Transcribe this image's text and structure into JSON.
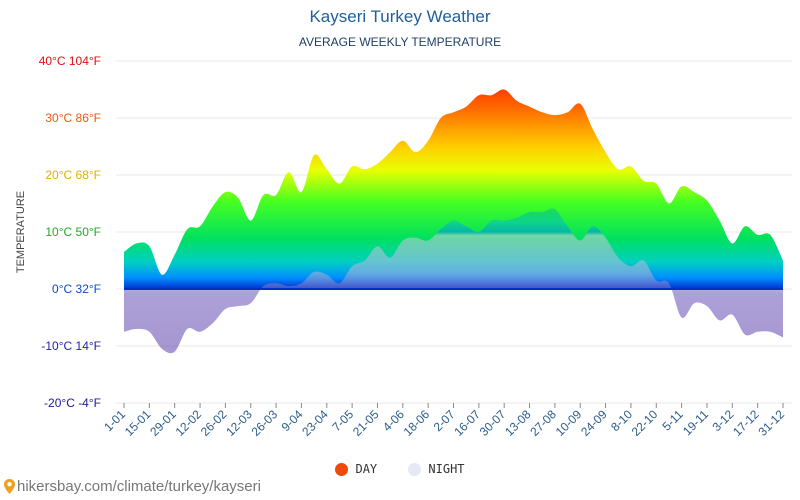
{
  "chart_data": {
    "type": "area",
    "title": "Kayseri Turkey Weather",
    "subtitle": "AVERAGE WEEKLY TEMPERATURE",
    "ylabel": "TEMPERATURE",
    "ylim": [
      -20,
      40
    ],
    "y_ticks": [
      {
        "value": 40,
        "label": "40°C 104°F",
        "color": "#e01010"
      },
      {
        "value": 30,
        "label": "30°C 86°F",
        "color": "#e85a0a"
      },
      {
        "value": 20,
        "label": "20°C 68°F",
        "color": "#e0b000"
      },
      {
        "value": 10,
        "label": "10°C 50°F",
        "color": "#22aa22"
      },
      {
        "value": 0,
        "label": "0°C 32°F",
        "color": "#0a4ac8"
      },
      {
        "value": -10,
        "label": "-10°C 14°F",
        "color": "#2222aa"
      },
      {
        "value": -20,
        "label": "-20°C -4°F",
        "color": "#1a1a99"
      }
    ],
    "x_tick_labels": [
      "1-01",
      "15-01",
      "29-01",
      "12-02",
      "26-02",
      "12-03",
      "26-03",
      "9-04",
      "23-04",
      "7-05",
      "21-05",
      "4-06",
      "18-06",
      "2-07",
      "16-07",
      "30-07",
      "13-08",
      "27-08",
      "10-09",
      "24-09",
      "8-10",
      "22-10",
      "5-11",
      "19-11",
      "3-12",
      "17-12",
      "31-12"
    ],
    "grid": true,
    "legend_position": "bottom",
    "series": [
      {
        "name": "DAY",
        "color": "#ee4a0a",
        "values": [
          6.5,
          8,
          7.5,
          2.5,
          6,
          10.5,
          11,
          14.5,
          17,
          16,
          12,
          16.5,
          16.5,
          20.5,
          17,
          23.5,
          21,
          18.5,
          21.5,
          21,
          22,
          24,
          26,
          24,
          26,
          30,
          31,
          32,
          34,
          34,
          35,
          33,
          32,
          31,
          30.5,
          31,
          32.5,
          28,
          24,
          21,
          21.5,
          19,
          18.5,
          15,
          18,
          17,
          15.5,
          12,
          8,
          11,
          9.5,
          9.5,
          5
        ]
      },
      {
        "name": "NIGHT",
        "color": "#e6e8f3",
        "values": [
          -7.5,
          -7,
          -7.5,
          -10.5,
          -11,
          -7,
          -7.5,
          -6,
          -3.5,
          -3,
          -2.5,
          0.5,
          1,
          0.5,
          1,
          3,
          2.5,
          1,
          4,
          5,
          7.5,
          5.5,
          8.5,
          9,
          8.5,
          10.5,
          12,
          11,
          10,
          12,
          12,
          12.5,
          13.5,
          13.5,
          14,
          11,
          8.5,
          11,
          9,
          5.5,
          4,
          5,
          1.5,
          1,
          -5,
          -2.5,
          -3,
          -5.5,
          -4.5,
          -8,
          -7.5,
          -7.5,
          -8.5
        ]
      }
    ]
  },
  "legend": {
    "day_label": "DAY",
    "night_label": "NIGHT"
  },
  "source": "hikersbay.com/climate/turkey/kayseri"
}
